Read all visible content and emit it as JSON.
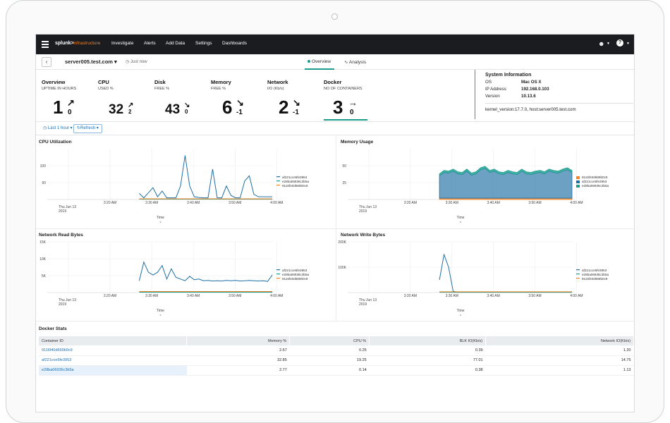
{
  "nav": {
    "logo": "splunk>",
    "logo_sub": "Infrastructure",
    "items": [
      "Investigate",
      "Alerts",
      "Add Data",
      "Settings",
      "Dashboards"
    ]
  },
  "header": {
    "host": "server005.test.com",
    "timestamp": "Just now",
    "tabs": [
      {
        "label": "Overview",
        "active": true
      },
      {
        "label": "Analysis",
        "active": false
      }
    ]
  },
  "metrics": [
    {
      "title": "Overview",
      "subtitle": "UPTIME IN HOURS",
      "value": "1",
      "arrow": "↗",
      "delta": "0"
    },
    {
      "title": "CPU",
      "subtitle": "USED %",
      "value": "32",
      "arrow": "↗",
      "delta": "2"
    },
    {
      "title": "Disk",
      "subtitle": "FREE %",
      "value": "43",
      "arrow": "↘",
      "delta": "0"
    },
    {
      "title": "Memory",
      "subtitle": "FREE %",
      "value": "6",
      "arrow": "↘",
      "delta": "-1"
    },
    {
      "title": "Network",
      "subtitle": "I/O (Kb/s)",
      "value": "2",
      "arrow": "↘",
      "delta": "-1"
    },
    {
      "title": "Docker",
      "subtitle": "NO OF CONTAINERS",
      "value": "3",
      "arrow": "→",
      "delta": "0"
    }
  ],
  "sysinfo": {
    "title": "System Information",
    "rows": [
      {
        "key": "OS",
        "value": "Mac OS X"
      },
      {
        "key": "IP Address",
        "value": "192.168.0.103"
      },
      {
        "key": "Version",
        "value": "10.13.6"
      }
    ],
    "footer": "kernel_version:17.7.0, host:server005.test.com"
  },
  "timecontrols": {
    "range": "Last 1 hour",
    "refresh": "Refresh"
  },
  "containers": [
    "af221cce5fe3953",
    "e28ba06936c3b5a",
    "9116f40d669b0c9"
  ],
  "colors": {
    "c1": "#1f6fa3",
    "c2": "#1a9c8f",
    "c3": "#f58220",
    "accent": "#1a9c8f"
  },
  "chart_data": [
    {
      "type": "line",
      "title": "CPU Utilization",
      "xlabel": "Time",
      "x_ticks": [
        "Thu Jun 13 2019",
        "3:20 AM",
        "3:30 AM",
        "3:40 AM",
        "3:50 AM",
        "4:00 AM"
      ],
      "y_ticks": [
        50,
        100
      ],
      "ylim": [
        0,
        150
      ],
      "series": [
        {
          "name": "af221cce5fe3953",
          "color": "#1f6fa3",
          "values": [
            18,
            5,
            20,
            35,
            8,
            25,
            5,
            5,
            5,
            40,
            130,
            40,
            8,
            6,
            5,
            5,
            90,
            5,
            5,
            40,
            12,
            5,
            5,
            55,
            70,
            15,
            8,
            8,
            8,
            8
          ]
        },
        {
          "name": "e28ba06936c3b5a",
          "color": "#1a9c8f",
          "values": [
            1,
            1,
            1,
            1,
            1,
            1,
            1,
            1,
            1,
            1,
            1,
            1,
            1,
            1,
            1,
            1,
            1,
            1,
            1,
            1,
            1,
            1,
            1,
            1,
            1,
            1,
            1,
            1,
            1,
            1
          ]
        },
        {
          "name": "9116f40d669b0c9",
          "color": "#f58220",
          "values": [
            2,
            2,
            2,
            2,
            2,
            2,
            2,
            2,
            2,
            2,
            2,
            2,
            2,
            2,
            2,
            2,
            2,
            2,
            2,
            2,
            2,
            2,
            2,
            2,
            2,
            2,
            2,
            2,
            2,
            2
          ]
        }
      ]
    },
    {
      "type": "area",
      "title": "Memory Usage",
      "xlabel": "Time",
      "x_ticks": [
        "Thu Jun 13 2019",
        "3:20 AM",
        "3:30 AM",
        "3:40 AM",
        "3:50 AM",
        "4:00 AM"
      ],
      "y_ticks": [
        25,
        50
      ],
      "ylim": [
        0,
        75
      ],
      "series": [
        {
          "name": "9116f40d669b0c9",
          "color": "#f58220",
          "values": [
            2,
            2,
            2,
            2,
            2,
            2,
            2,
            2,
            2,
            2,
            2,
            2,
            2,
            2,
            2,
            2,
            2,
            2,
            2,
            2,
            2,
            2,
            2,
            2,
            2,
            2,
            2,
            2,
            2,
            2
          ]
        },
        {
          "name": "af221cce5fe3953",
          "color": "#1f6fa3",
          "values": [
            33,
            38,
            37,
            40,
            36,
            35,
            40,
            34,
            36,
            42,
            44,
            38,
            40,
            36,
            35,
            38,
            36,
            35,
            40,
            36,
            35,
            37,
            38,
            36,
            40,
            38,
            37,
            40,
            42,
            38
          ]
        },
        {
          "name": "e28ba06936c3b5a",
          "color": "#1a9c8f",
          "values": [
            3,
            3,
            3,
            3,
            3,
            3,
            3,
            3,
            3,
            3,
            3,
            3,
            3,
            3,
            3,
            3,
            3,
            3,
            3,
            3,
            3,
            3,
            3,
            3,
            3,
            3,
            3,
            3,
            3,
            3
          ]
        }
      ]
    },
    {
      "type": "line",
      "title": "Network Read Bytes",
      "xlabel": "Time",
      "x_ticks": [
        "Thu Jun 13 2019",
        "3:20 AM",
        "3:30 AM",
        "3:40 AM",
        "3:50 AM",
        "4:00 AM"
      ],
      "y_ticks": [
        "5K",
        "10K",
        "15K"
      ],
      "y_tick_values": [
        5000,
        10000,
        15000
      ],
      "ylim": [
        0,
        15000
      ],
      "series": [
        {
          "name": "af221cce5fe3953",
          "color": "#1f6fa3",
          "values": [
            3500,
            9000,
            6000,
            5200,
            6000,
            8000,
            4000,
            7000,
            4500,
            4000,
            3500,
            4800,
            3800,
            4000,
            3500,
            3600,
            3400,
            3500,
            3400,
            3600,
            3500,
            3600,
            3400,
            3500,
            3600,
            3500,
            3400,
            3500,
            3300,
            5200
          ]
        },
        {
          "name": "e28ba06936c3b5a",
          "color": "#1a9c8f",
          "values": [
            100,
            100,
            100,
            100,
            100,
            100,
            100,
            100,
            100,
            100,
            100,
            100,
            100,
            100,
            100,
            100,
            100,
            100,
            100,
            100,
            100,
            100,
            100,
            100,
            100,
            100,
            100,
            100,
            100,
            100
          ]
        },
        {
          "name": "9116f40d669b0c9",
          "color": "#f58220",
          "values": [
            300,
            300,
            300,
            300,
            300,
            300,
            300,
            300,
            300,
            300,
            300,
            300,
            300,
            300,
            300,
            300,
            300,
            300,
            300,
            300,
            300,
            300,
            300,
            300,
            300,
            300,
            300,
            300,
            300,
            300
          ]
        }
      ]
    },
    {
      "type": "line",
      "title": "Network Write Bytes",
      "xlabel": "Time",
      "x_ticks": [
        "Thu Jun 13 2019",
        "3:20 AM",
        "3:30 AM",
        "3:40 AM",
        "3:50 AM",
        "4:00 AM"
      ],
      "y_ticks": [
        "100K",
        "200K"
      ],
      "y_tick_values": [
        100000,
        200000
      ],
      "ylim": [
        0,
        200000
      ],
      "series": [
        {
          "name": "af221cce5fe3953",
          "color": "#1f6fa3",
          "values": [
            50000,
            150000,
            100000,
            5000,
            2000,
            2000,
            2000,
            2000,
            2000,
            2000,
            2000,
            2000,
            2000,
            2000,
            2000,
            2000,
            2000,
            2000,
            2000,
            2000,
            2000,
            2000,
            2000,
            2000,
            2000,
            2000,
            2000,
            2000,
            2000,
            2000
          ]
        },
        {
          "name": "e28ba06936c3b5a",
          "color": "#1a9c8f",
          "values": [
            1000,
            1000,
            1000,
            1000,
            1000,
            1000,
            1000,
            1000,
            1000,
            1000,
            1000,
            1000,
            1000,
            1000,
            1000,
            1000,
            1000,
            1000,
            1000,
            1000,
            1000,
            1000,
            1000,
            1000,
            1000,
            1000,
            1000,
            1000,
            1000,
            1000
          ]
        },
        {
          "name": "9116f40d669b0c9",
          "color": "#f58220",
          "values": [
            3000,
            3000,
            3000,
            3000,
            3000,
            3000,
            3000,
            3000,
            3000,
            3000,
            3000,
            3000,
            3000,
            3000,
            3000,
            3000,
            3000,
            3000,
            3000,
            3000,
            3000,
            3000,
            3000,
            3000,
            3000,
            3000,
            3000,
            3000,
            3000,
            3000
          ]
        }
      ]
    }
  ],
  "docker": {
    "title": "Docker Stats",
    "columns": [
      "Container ID",
      "Memory %",
      "CPU %",
      "BLK IO(Kb/s)",
      "Network IO(Kb/s)"
    ],
    "rows": [
      [
        "9116f40d669b0c9",
        "2.67",
        "0.25",
        "0.39",
        "1.20"
      ],
      [
        "af221cce5fe3953",
        "32.85",
        "19.25",
        "77.01",
        "14.75"
      ],
      [
        "e28ba06936c3b5a",
        "2.77",
        "0.14",
        "0.38",
        "1.13"
      ]
    ]
  }
}
